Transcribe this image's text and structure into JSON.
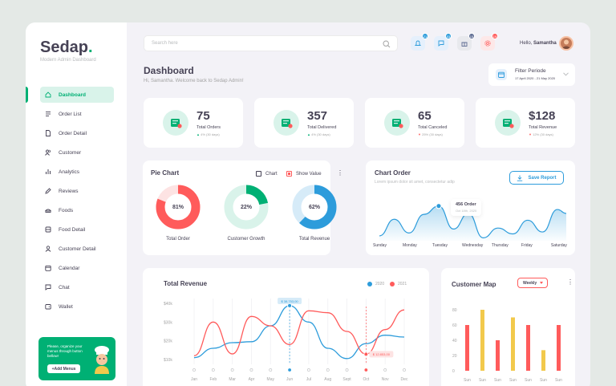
{
  "brand": {
    "name": "Sedap",
    "dot": ".",
    "subtitle": "Modern Admin Dashboard"
  },
  "sidebar": {
    "items": [
      {
        "label": "Dashboard",
        "icon": "home-icon",
        "active": true
      },
      {
        "label": "Order List",
        "icon": "list-icon"
      },
      {
        "label": "Order Detail",
        "icon": "document-icon"
      },
      {
        "label": "Customer",
        "icon": "users-icon"
      },
      {
        "label": "Analytics",
        "icon": "bar-chart-icon"
      },
      {
        "label": "Reviews",
        "icon": "pen-icon"
      },
      {
        "label": "Foods",
        "icon": "food-icon"
      },
      {
        "label": "Food Detail",
        "icon": "food-detail-icon"
      },
      {
        "label": "Customer Detail",
        "icon": "user-icon"
      },
      {
        "label": "Calendar",
        "icon": "calendar-icon"
      },
      {
        "label": "Chat",
        "icon": "chat-icon"
      },
      {
        "label": "Wallet",
        "icon": "wallet-icon"
      }
    ],
    "promo": {
      "text": "Please, organize your menus through button bellow!",
      "button": "+Add Menus"
    }
  },
  "header": {
    "search_placeholder": "Search here",
    "icons": [
      {
        "name": "bell-icon",
        "badge": "21",
        "bg": "#e5f0fc",
        "badge_color": "#2d9cdb"
      },
      {
        "name": "chat-bubble-icon",
        "badge": "53",
        "bg": "#e5f0fc",
        "badge_color": "#2d9cdb"
      },
      {
        "name": "gift-icon",
        "badge": "15",
        "bg": "#e8e9ed",
        "badge_color": "#5e6c93"
      },
      {
        "name": "settings-icon",
        "badge": "19",
        "bg": "#fde8e8",
        "badge_color": "#ff5b5b"
      }
    ],
    "greeting": "Hello,",
    "user": "Samantha"
  },
  "page": {
    "title": "Dashboard",
    "subtitle": "Hi, Samantha. Welcome back to Sedap Admin!",
    "filter": {
      "title": "Filter Periode",
      "range": "17 April 2020 - 21 May 2020"
    }
  },
  "stats": [
    {
      "value": "75",
      "label": "Total Orders",
      "change": "4% (30 days)",
      "dir": "up"
    },
    {
      "value": "357",
      "label": "Total Delivered",
      "change": "4% (30 days)",
      "dir": "up"
    },
    {
      "value": "65",
      "label": "Total Canceled",
      "change": "25% (30 days)",
      "dir": "down"
    },
    {
      "value": "$128",
      "label": "Total Revenue",
      "change": "12% (30 days)",
      "dir": "down"
    }
  ],
  "pie_chart": {
    "title": "Pie Chart",
    "opt_chart": "Chart",
    "opt_show_value": "Show Value",
    "donuts": [
      {
        "percent": 81,
        "text": "81%",
        "label": "Total Order",
        "color": "#ff5b5b",
        "track": "#fde3e3"
      },
      {
        "percent": 22,
        "text": "22%",
        "label": "Customer Growth",
        "color": "#00b074",
        "track": "#d9f3ea"
      },
      {
        "percent": 62,
        "text": "62%",
        "label": "Total Revenue",
        "color": "#2d9cdb",
        "track": "#d6ebf8"
      }
    ]
  },
  "chart_order": {
    "title": "Chart Order",
    "subtitle": "Lorem ipsum dolor sit amet, consectetur adip",
    "save_button": "Save Report",
    "tooltip": {
      "value": "456 Order",
      "date": "Oct 18th, 2020"
    },
    "days": [
      "Sunday",
      "Monday",
      "Tuesday",
      "Wednesday",
      "Thursday",
      "Friday",
      "Saturday"
    ]
  },
  "total_revenue": {
    "title": "Total Revenue",
    "legend": [
      {
        "label": "2020",
        "color": "#2d9cdb"
      },
      {
        "label": "2021",
        "color": "#ff5b5b"
      }
    ],
    "tooltip_2020": "$ 38.753,00",
    "tooltip_2021": "$ 12.853,00"
  },
  "customer_map": {
    "title": "Customer Map",
    "dropdown": "Weekly"
  },
  "chart_data": [
    {
      "type": "pie",
      "title": "Pie Chart",
      "series": [
        {
          "name": "Total Order",
          "value": 81
        },
        {
          "name": "Customer Growth",
          "value": 22
        },
        {
          "name": "Total Revenue",
          "value": 62
        }
      ]
    },
    {
      "type": "area",
      "title": "Chart Order",
      "categories": [
        "Sunday",
        "Monday",
        "Tuesday",
        "Wednesday",
        "Thursday",
        "Friday",
        "Saturday"
      ],
      "x": [
        0,
        0.5,
        1,
        1.5,
        2,
        2.5,
        3,
        3.5,
        4,
        4.5,
        5,
        5.5,
        6,
        6.3
      ],
      "values": [
        150,
        320,
        180,
        370,
        456,
        220,
        380,
        130,
        230,
        170,
        310,
        190,
        420,
        380
      ]
    },
    {
      "type": "line",
      "title": "Total Revenue",
      "categories": [
        "Jan",
        "Feb",
        "Mar",
        "Apr",
        "May",
        "Jun",
        "Jul",
        "Aug",
        "Sept",
        "Oct",
        "Nov",
        "Dec"
      ],
      "yticks": [
        "$40k",
        "$30k",
        "$20k",
        "$10k"
      ],
      "ylim": [
        10000,
        40000
      ],
      "series": [
        {
          "name": "2020",
          "values": [
            11000,
            16000,
            19000,
            19500,
            28000,
            38750,
            30000,
            16000,
            10500,
            18500,
            23000,
            22000
          ]
        },
        {
          "name": "2021",
          "values": [
            12000,
            30000,
            13000,
            33000,
            28000,
            18000,
            36000,
            35000,
            25000,
            12850,
            26000,
            36500
          ]
        }
      ]
    },
    {
      "type": "bar",
      "title": "Customer Map",
      "categories": [
        "Sun",
        "Sun",
        "Sun",
        "Sun",
        "Sun",
        "Sun",
        "Sun"
      ],
      "yticks": [
        "80",
        "60",
        "40",
        "20",
        "0"
      ],
      "ylim": [
        0,
        80
      ],
      "values": [
        60,
        80,
        40,
        70,
        60,
        27,
        60
      ],
      "colors": [
        "#ff5b5b",
        "#f2c94c",
        "#ff5b5b",
        "#f2c94c",
        "#ff5b5b",
        "#f2c94c",
        "#ff5b5b"
      ]
    }
  ]
}
